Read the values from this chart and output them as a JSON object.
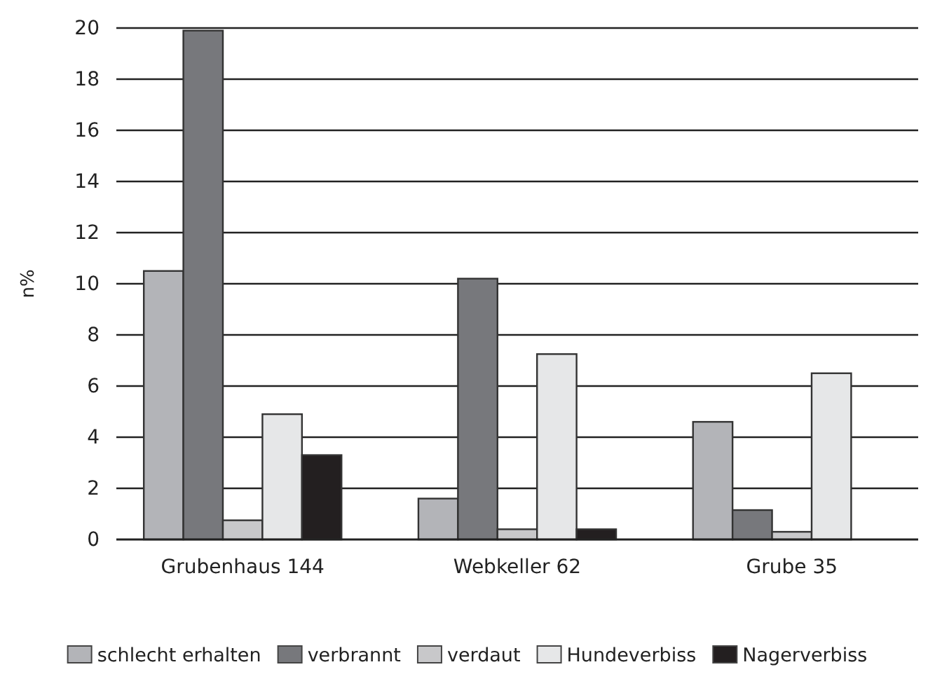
{
  "chart_data": {
    "type": "bar",
    "ylabel": "n%",
    "categories": [
      "Grubenhaus 144",
      "Webkeller 62",
      "Grube 35"
    ],
    "series": [
      {
        "name": "schlecht erhalten",
        "color": "#b3b4b8",
        "values": [
          10.5,
          1.6,
          4.6
        ]
      },
      {
        "name": "verbrannt",
        "color": "#77787c",
        "values": [
          19.9,
          10.2,
          1.15
        ]
      },
      {
        "name": "verdaut",
        "color": "#c8c8ca",
        "values": [
          0.75,
          0.4,
          0.3
        ]
      },
      {
        "name": "Hundeverbiss",
        "color": "#e6e7e8",
        "values": [
          4.9,
          7.25,
          6.5
        ]
      },
      {
        "name": "Nagerverbiss",
        "color": "#231f20",
        "values": [
          3.3,
          0.4,
          0
        ]
      }
    ],
    "ylim": [
      0,
      20
    ],
    "yticks": [
      0,
      2,
      4,
      6,
      8,
      10,
      12,
      14,
      16,
      18,
      20
    ],
    "grid": "y",
    "legend": "bottom"
  }
}
